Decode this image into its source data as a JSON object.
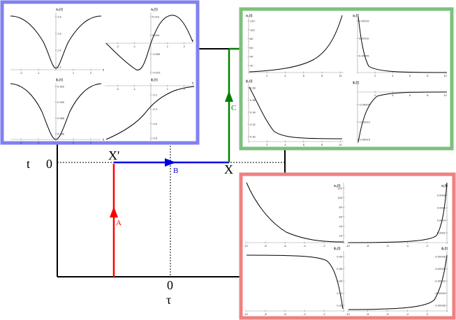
{
  "diagram": {
    "labels": {
      "t_axis": "t",
      "t_zero": "0",
      "tau_axis": "τ",
      "tau_zero": "0",
      "x_prime": "X'",
      "x_point": "X",
      "path_a": "A",
      "path_b": "B",
      "path_c": "C"
    },
    "colors": {
      "blue_frame": "#8080f0",
      "green_frame": "#7cc07c",
      "red_frame": "#f08080",
      "path_a": "#ff0000",
      "path_b": "#0000e0",
      "path_c": "#008000"
    }
  },
  "panels": {
    "blue": {
      "tl": {
        "title": "a₀(τ)",
        "xticks": [
          "-2",
          "-1",
          "1",
          "2"
        ],
        "yticks": [
          "1.8",
          "1.6",
          "1.4",
          "1.2"
        ],
        "xlabel": "τ"
      },
      "tr": {
        "title": "a₁(τ)",
        "xticks": [
          "-2",
          "-1",
          "1",
          "2"
        ],
        "yticks": [
          "0.010",
          "0.005",
          "-0.005",
          "-0.010"
        ],
        "xlabel": "τ"
      },
      "bl": {
        "title": "ϕ₀(τ)",
        "xticks": [
          "-2",
          "-1",
          "1",
          "2"
        ],
        "yticks": [
          "0.392",
          "0.390",
          "0.388",
          "0.386"
        ],
        "xlabel": "τ"
      },
      "br": {
        "title": "ϕ₁(τ)",
        "xticks": [
          "-2",
          "-1",
          "1",
          "2"
        ],
        "yticks": [
          "-0.2",
          "-0.4",
          "-0.6",
          "-0.8"
        ],
        "xlabel": "τ"
      }
    },
    "green": {
      "tl": {
        "title": "a₀(t)",
        "xticks": [
          "2",
          "4",
          "6",
          "8",
          "10"
        ],
        "yticks": [
          "120",
          "100",
          "80",
          "60",
          "40",
          "20"
        ],
        "xlabel": "t"
      },
      "tr": {
        "title": "a₁(t)",
        "xticks": [
          "2",
          "4",
          "6",
          "8",
          "10"
        ],
        "yticks": [
          "0.00015",
          "0.00010",
          "0.00005"
        ],
        "xlabel": "t"
      },
      "bl": {
        "title": "ϕ₀(t)",
        "xticks": [
          "2",
          "4",
          "6",
          "8",
          "10"
        ],
        "yticks": [
          "0.38",
          "0.36",
          "0.34",
          "0.32",
          "0.30"
        ],
        "xlabel": "t"
      },
      "br": {
        "title": "ϕ₁(t)",
        "xticks": [
          "2",
          "4",
          "6",
          "8",
          "10"
        ],
        "yticks": [
          "-0.00005",
          "-0.00010",
          "-0.00015"
        ],
        "xlabel": "t"
      }
    },
    "red": {
      "tl": {
        "title": "a₀(t)",
        "xticks": [
          "-10",
          "-8",
          "-6",
          "-4",
          "-2"
        ],
        "yticks": [
          "120",
          "100",
          "80",
          "60",
          "40",
          "20"
        ],
        "xlabel": "t"
      },
      "tr": {
        "title": "a₁(t)",
        "xticks": [
          "-10",
          "-8",
          "-6",
          "-4",
          "-2"
        ],
        "yticks": [
          "0.0008",
          "0.0006",
          "0.0004",
          "0.0002"
        ],
        "xlabel": "t"
      },
      "bl": {
        "title": "ϕ₀(t)",
        "xticks": [
          "-10",
          "-8",
          "-6",
          "-4",
          "-2"
        ],
        "yticks": [
          "0.40",
          "0.38",
          "0.36",
          "0.34",
          "0.32"
        ],
        "xlabel": "t"
      },
      "br": {
        "title": "ϕ₁(t)",
        "xticks": [
          "-10",
          "-8",
          "-6",
          "-4",
          "-2"
        ],
        "yticks": [
          "-0.00028",
          "-0.00030",
          "-0.00032",
          "-0.00034",
          "-0.00036"
        ],
        "xlabel": "t"
      }
    }
  }
}
